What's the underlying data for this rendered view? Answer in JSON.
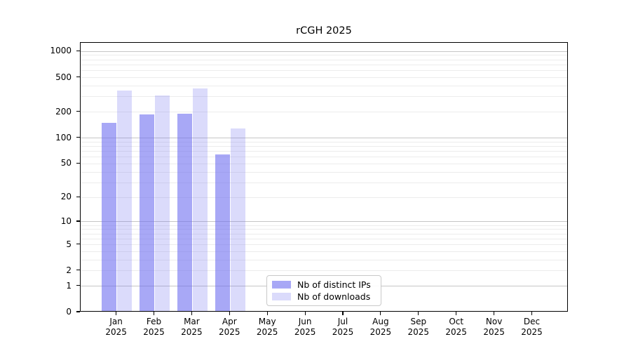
{
  "title": "rCGH 2025",
  "colors": {
    "ips_fill": "rgba(110,110,240,0.60)",
    "downloads_fill": "rgba(110,110,240,0.25)",
    "grid_major": "#c6c6c6",
    "grid_minor": "#ececec",
    "axis": "#000000"
  },
  "chart_data": {
    "type": "bar",
    "title": "rCGH 2025",
    "yscale": "log1p",
    "ylim": [
      0,
      1100
    ],
    "grid": "on",
    "legend_position": "lower-center",
    "categories": [
      "Jan",
      "Feb",
      "Mar",
      "Apr",
      "May",
      "Jun",
      "Jul",
      "Aug",
      "Sep",
      "Oct",
      "Nov",
      "Dec"
    ],
    "year_label": "2025",
    "series": [
      {
        "name": "Nb of distinct IPs",
        "values": [
          150,
          188,
          192,
          64,
          null,
          null,
          null,
          null,
          null,
          null,
          null,
          null
        ]
      },
      {
        "name": "Nb of downloads",
        "values": [
          355,
          310,
          378,
          130,
          null,
          null,
          null,
          null,
          null,
          null,
          null,
          null
        ]
      }
    ],
    "ytick_values": [
      1000,
      500,
      200,
      100,
      50,
      20,
      10,
      5,
      2,
      1,
      0
    ],
    "ytick_labels": [
      "1000",
      "500",
      "200",
      "100",
      "50",
      "20",
      "10",
      "5",
      "2",
      "1",
      "0"
    ],
    "grid_major_values": [
      1,
      10,
      100,
      1000
    ],
    "grid_minor_values": [
      2,
      3,
      4,
      5,
      6,
      7,
      8,
      9,
      20,
      30,
      40,
      50,
      60,
      70,
      80,
      90,
      200,
      300,
      400,
      500,
      600,
      700,
      800,
      900
    ]
  }
}
